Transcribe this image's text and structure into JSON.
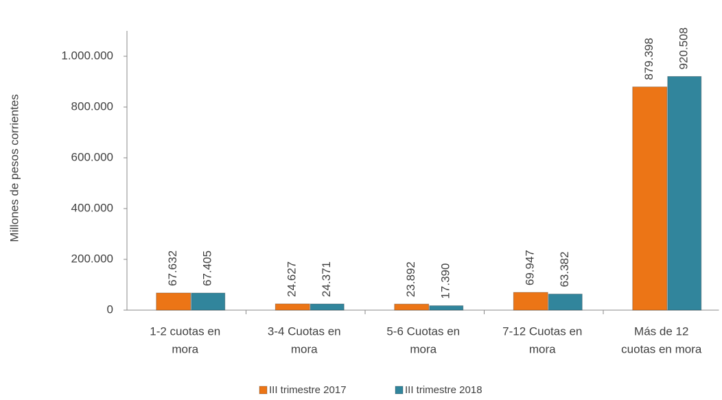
{
  "chart_data": {
    "type": "bar",
    "y_label": "Millones de pesos corrientes",
    "categories": [
      [
        "1-2 cuotas en",
        "mora"
      ],
      [
        "3-4 Cuotas en",
        "mora"
      ],
      [
        "5-6 Cuotas en",
        "mora"
      ],
      [
        "7-12 Cuotas en",
        "mora"
      ],
      [
        "Más de 12",
        "cuotas en mora"
      ]
    ],
    "series": [
      {
        "name": "III trimestre 2017",
        "color": "#ec7516",
        "values": [
          67632,
          24627,
          23892,
          69947,
          879398
        ],
        "value_labels": [
          "67.632",
          "24.627",
          "23.892",
          "69.947",
          "879.398"
        ]
      },
      {
        "name": "III trimestre 2018",
        "color": "#31859c",
        "values": [
          67405,
          24371,
          17390,
          63382,
          920508
        ],
        "value_labels": [
          "67.405",
          "24.371",
          "17.390",
          "63.382",
          "920.508"
        ]
      }
    ],
    "ylim": [
      0,
      1100000
    ],
    "yticks": [
      0,
      {
        "value": 200000,
        "label": "200.000"
      },
      {
        "value": 400000,
        "label": "400.000"
      },
      {
        "value": 600000,
        "label": "600.000"
      },
      {
        "value": 800000,
        "label": "800.000"
      },
      {
        "value": 1000000,
        "label": "1.000.000"
      }
    ]
  }
}
